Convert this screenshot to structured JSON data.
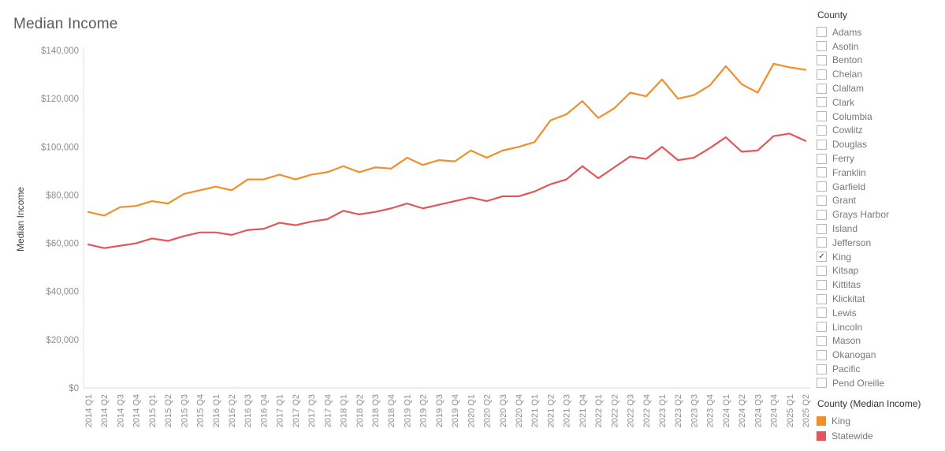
{
  "title": "Median Income",
  "filter": {
    "title": "County",
    "checked": "King",
    "options": [
      "Adams",
      "Asotin",
      "Benton",
      "Chelan",
      "Clallam",
      "Clark",
      "Columbia",
      "Cowlitz",
      "Douglas",
      "Ferry",
      "Franklin",
      "Garfield",
      "Grant",
      "Grays Harbor",
      "Island",
      "Jefferson",
      "King",
      "Kitsap",
      "Kittitas",
      "Klickitat",
      "Lewis",
      "Lincoln",
      "Mason",
      "Okanogan",
      "Pacific",
      "Pend Oreille"
    ]
  },
  "legend": {
    "title": "County (Median Income)",
    "items": [
      {
        "label": "King",
        "color": "#f28e2b"
      },
      {
        "label": "Statewide",
        "color": "#e15759"
      }
    ]
  },
  "chart_data": {
    "type": "line",
    "title": "Median Income",
    "ylabel": "Median Income",
    "ylim": [
      0,
      140000
    ],
    "y_ticks": [
      0,
      20000,
      40000,
      60000,
      80000,
      100000,
      120000,
      140000
    ],
    "grid": false,
    "legend_position": "bottom-right",
    "x": [
      "2014 Q1",
      "2014 Q2",
      "2014 Q3",
      "2014 Q4",
      "2015 Q1",
      "2015 Q2",
      "2015 Q3",
      "2015 Q4",
      "2016 Q1",
      "2016 Q2",
      "2016 Q3",
      "2016 Q4",
      "2017 Q1",
      "2017 Q2",
      "2017 Q3",
      "2017 Q4",
      "2018 Q1",
      "2018 Q2",
      "2018 Q3",
      "2018 Q4",
      "2019 Q1",
      "2019 Q2",
      "2019 Q3",
      "2019 Q4",
      "2020 Q1",
      "2020 Q2",
      "2020 Q3",
      "2020 Q4",
      "2021 Q1",
      "2021 Q2",
      "2021 Q3",
      "2021 Q4",
      "2022 Q1",
      "2022 Q2",
      "2022 Q3",
      "2022 Q4",
      "2023 Q1",
      "2023 Q2",
      "2023 Q3",
      "2023 Q4",
      "2024 Q1",
      "2024 Q2",
      "2024 Q3",
      "2024 Q4",
      "2025 Q1",
      "2025 Q2"
    ],
    "series": [
      {
        "name": "King",
        "color": "#f28e2b",
        "values": [
          73000,
          71500,
          75000,
          75500,
          77500,
          76500,
          80500,
          82000,
          83500,
          82000,
          86500,
          86500,
          88500,
          86500,
          88500,
          89500,
          92000,
          89500,
          91500,
          91000,
          95500,
          92500,
          94500,
          94000,
          98500,
          95500,
          98500,
          100000,
          102000,
          111000,
          113500,
          119000,
          112000,
          116000,
          122500,
          121000,
          128000,
          120000,
          121500,
          125500,
          133500,
          126000,
          122500,
          134500,
          133000,
          132000
        ]
      },
      {
        "name": "Statewide",
        "color": "#e15759",
        "values": [
          59500,
          58000,
          59000,
          60000,
          62000,
          61000,
          63000,
          64500,
          64500,
          63500,
          65500,
          66000,
          68500,
          67500,
          69000,
          70000,
          73500,
          72000,
          73000,
          74500,
          76500,
          74500,
          76000,
          77500,
          79000,
          77500,
          79500,
          79500,
          81500,
          84500,
          86500,
          92000,
          87000,
          91500,
          96000,
          95000,
          100000,
          94500,
          95500,
          99500,
          104000,
          98000,
          98500,
          104500,
          105500,
          102500
        ]
      }
    ]
  }
}
